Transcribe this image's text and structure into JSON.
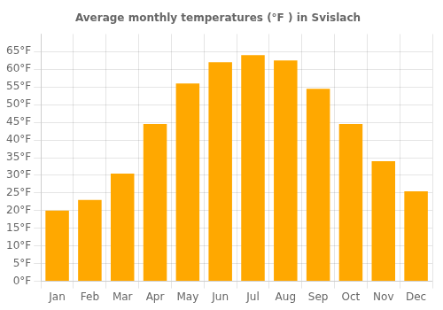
{
  "chart_data": {
    "type": "bar",
    "title": "Average monthly temperatures (°F ) in Svislach",
    "categories": [
      "Jan",
      "Feb",
      "Mar",
      "Apr",
      "May",
      "Jun",
      "Jul",
      "Aug",
      "Sep",
      "Oct",
      "Nov",
      "Dec"
    ],
    "values": [
      20,
      23,
      30.5,
      44.5,
      56,
      62,
      64,
      62.5,
      54.5,
      44.5,
      34,
      25.5
    ],
    "color": "#FFA800",
    "ylim": [
      0,
      70
    ],
    "yticks": [
      {
        "value": 0,
        "label": "0°F"
      },
      {
        "value": 5,
        "label": "5°F"
      },
      {
        "value": 10,
        "label": "10°F"
      },
      {
        "value": 15,
        "label": "15°F"
      },
      {
        "value": 20,
        "label": "20°F"
      },
      {
        "value": 25,
        "label": "25°F"
      },
      {
        "value": 30,
        "label": "30°F"
      },
      {
        "value": 35,
        "label": "35°F"
      },
      {
        "value": 40,
        "label": "40°F"
      },
      {
        "value": 45,
        "label": "45°F"
      },
      {
        "value": 50,
        "label": "50°F"
      },
      {
        "value": 55,
        "label": "55°F"
      },
      {
        "value": 60,
        "label": "60°F"
      },
      {
        "value": 65,
        "label": "65°F"
      }
    ],
    "grid": true
  }
}
